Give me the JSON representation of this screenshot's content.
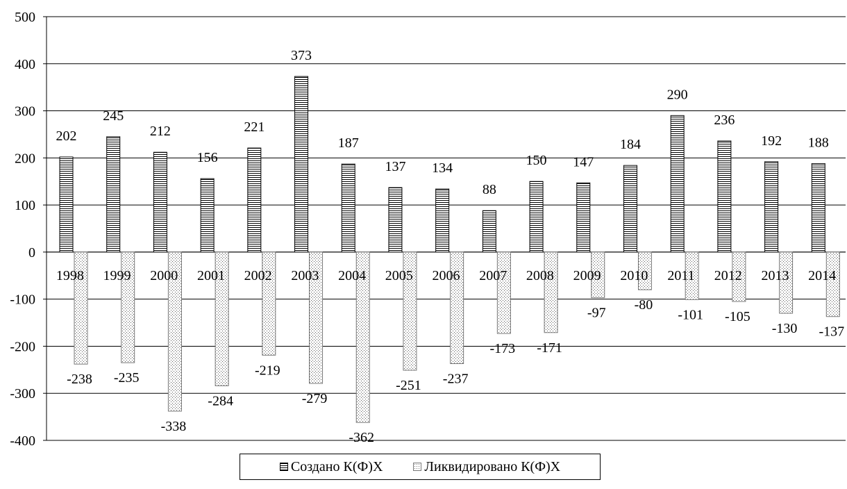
{
  "chart_data": {
    "type": "bar",
    "title": "",
    "xlabel": "",
    "ylabel": "",
    "ylim": [
      -400,
      500
    ],
    "yticks": [
      500,
      400,
      300,
      200,
      100,
      0,
      -100,
      -200,
      -300,
      -400
    ],
    "grid": true,
    "legend_position": "bottom",
    "categories": [
      "1998",
      "1999",
      "2000",
      "2001",
      "2002",
      "2003",
      "2004",
      "2005",
      "2006",
      "2007",
      "2008",
      "2009",
      "2010",
      "2011",
      "2012",
      "2013",
      "2014"
    ],
    "series": [
      {
        "name": "Создано К(Ф)Х",
        "pattern": "horizontal-stripes",
        "values": [
          202,
          245,
          212,
          156,
          221,
          373,
          187,
          137,
          134,
          88,
          150,
          147,
          184,
          290,
          236,
          192,
          188
        ]
      },
      {
        "name": "Ликвидировано К(Ф)Х",
        "pattern": "dots",
        "values": [
          -238,
          -235,
          -338,
          -284,
          -219,
          -279,
          -362,
          -251,
          -237,
          -173,
          -171,
          -97,
          -80,
          -101,
          -105,
          -130,
          -137
        ]
      }
    ]
  },
  "colors": {
    "bar_outline": "#000000",
    "gridline": "#000000",
    "background": "#ffffff"
  }
}
